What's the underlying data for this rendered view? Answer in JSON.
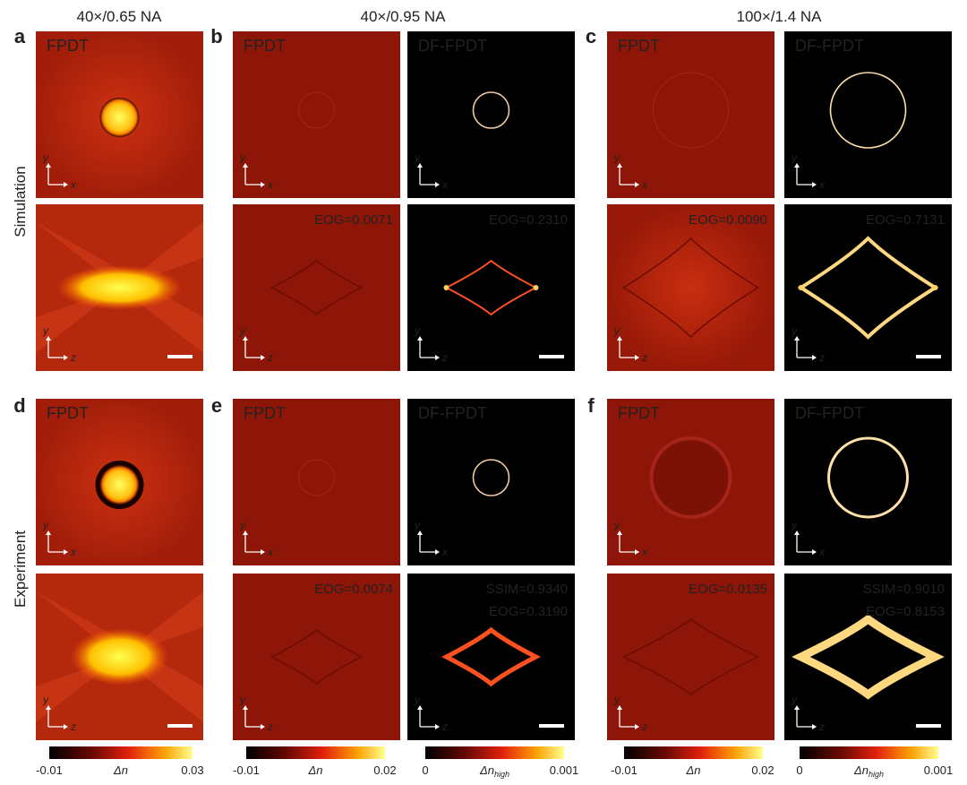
{
  "figure": {
    "column_headers": [
      "40×/0.65 NA",
      "40×/0.95 NA",
      "100×/1.4 NA"
    ],
    "row_labels": [
      "Simulation",
      "Experiment"
    ],
    "panel_letters": [
      "a",
      "b",
      "c",
      "d",
      "e",
      "f"
    ],
    "tiles": [
      {
        "texts": [
          "FPDT"
        ],
        "axes": [
          "y",
          "x"
        ]
      },
      {
        "texts": [
          "FPDT"
        ],
        "axes": [
          "y",
          "x"
        ]
      },
      {
        "texts": [
          "DF-FPDT"
        ],
        "axes": [
          "y",
          "x"
        ]
      },
      {
        "texts": [
          "FPDT"
        ],
        "axes": [
          "y",
          "x"
        ]
      },
      {
        "texts": [
          "DF-FPDT"
        ],
        "axes": [
          "y",
          "x"
        ]
      },
      {
        "axes": [
          "y",
          "z"
        ]
      },
      {
        "texts": [
          "EOG=0.0071"
        ],
        "axes": [
          "y",
          "z"
        ]
      },
      {
        "texts": [
          "EOG=0.2310"
        ],
        "axes": [
          "y",
          "z"
        ]
      },
      {
        "texts": [
          "EOG=0.0090"
        ],
        "axes": [
          "y",
          "z"
        ]
      },
      {
        "texts": [
          "EOG=0.7131"
        ],
        "axes": [
          "y",
          "z"
        ]
      },
      {
        "texts": [
          "FPDT"
        ],
        "axes": [
          "y",
          "x"
        ]
      },
      {
        "texts": [
          "FPDT"
        ],
        "axes": [
          "y",
          "x"
        ]
      },
      {
        "texts": [
          "DF-FPDT"
        ],
        "axes": [
          "y",
          "x"
        ]
      },
      {
        "texts": [
          "FPDT"
        ],
        "axes": [
          "y",
          "x"
        ]
      },
      {
        "texts": [
          "DF-FPDT"
        ],
        "axes": [
          "y",
          "x"
        ]
      },
      {
        "axes": [
          "y",
          "z"
        ]
      },
      {
        "texts": [
          "EOG=0.0074"
        ],
        "axes": [
          "y",
          "z"
        ]
      },
      {
        "texts": [
          "SSIM=0.9340",
          "EOG=0.3190"
        ],
        "axes": [
          "y",
          "z"
        ]
      },
      {
        "texts": [
          "EOG=0.0135"
        ],
        "axes": [
          "y",
          "z"
        ]
      },
      {
        "texts": [
          "SSIM=0.9010",
          "EOG=0.8153"
        ],
        "axes": [
          "y",
          "z"
        ]
      }
    ],
    "colorbars": [
      {
        "min": -0.01,
        "symbol": "Δn",
        "max": 0.03
      },
      {
        "min": -0.01,
        "symbol": "Δn",
        "max": 0.02
      },
      {
        "min": 0,
        "symbol": "Δn",
        "subscript": "high",
        "max": 0.001
      },
      {
        "min": -0.01,
        "symbol": "Δn",
        "max": 0.02
      },
      {
        "min": 0,
        "symbol": "Δn",
        "subscript": "high",
        "max": 0.001
      }
    ]
  }
}
